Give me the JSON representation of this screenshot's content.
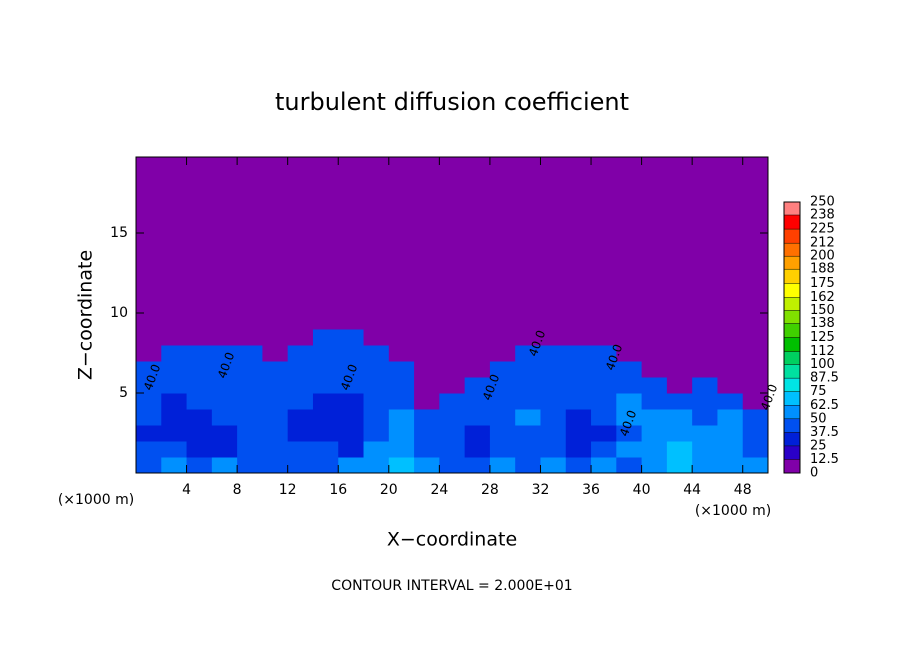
{
  "chart_data": {
    "type": "heatmap",
    "title": "turbulent diffusion coefficient",
    "x_label": "X−coordinate",
    "y_label": "Z−coordinate",
    "x_unit_left": "(×1000 m)",
    "x_unit_right": "(×1000 m)",
    "footer": "CONTOUR INTERVAL = 2.000E+01",
    "xlim": [
      0,
      50
    ],
    "ylim": [
      0,
      19.75
    ],
    "xticks": [
      4,
      8,
      12,
      16,
      20,
      24,
      28,
      32,
      36,
      40,
      44,
      48
    ],
    "yticks": [
      5,
      10,
      15
    ],
    "x_edges": [
      0,
      2,
      4,
      6,
      8,
      10,
      12,
      14,
      16,
      18,
      20,
      22,
      24,
      26,
      28,
      30,
      32,
      34,
      36,
      38,
      40,
      42,
      44,
      46,
      48,
      50
    ],
    "y_edges": [
      0,
      1,
      2,
      3,
      4,
      5,
      6,
      7,
      8,
      9,
      19.75
    ],
    "values": [
      [
        45,
        50,
        40,
        50,
        45,
        45,
        40,
        45,
        50,
        55,
        65,
        50,
        40,
        45,
        50,
        45,
        50,
        40,
        50,
        45,
        60,
        65,
        60,
        55,
        50
      ],
      [
        40,
        40,
        30,
        35,
        40,
        45,
        40,
        40,
        35,
        50,
        60,
        45,
        45,
        35,
        40,
        40,
        45,
        35,
        40,
        55,
        60,
        70,
        55,
        50,
        45
      ],
      [
        35,
        30,
        30,
        35,
        45,
        40,
        35,
        30,
        35,
        45,
        55,
        45,
        40,
        35,
        40,
        45,
        40,
        30,
        35,
        45,
        55,
        60,
        50,
        55,
        45
      ],
      [
        40,
        30,
        30,
        40,
        45,
        40,
        35,
        35,
        30,
        40,
        50,
        40,
        45,
        45,
        40,
        50,
        40,
        35,
        40,
        50,
        50,
        55,
        45,
        50,
        40
      ],
      [
        45,
        35,
        40,
        40,
        45,
        40,
        40,
        35,
        35,
        40,
        45,
        10,
        45,
        40,
        45,
        45,
        40,
        45,
        45,
        50,
        45,
        45,
        40,
        45,
        0
      ],
      [
        45,
        40,
        40,
        45,
        45,
        45,
        40,
        40,
        40,
        45,
        45,
        0,
        0,
        45,
        40,
        45,
        40,
        45,
        45,
        45,
        40,
        10,
        40,
        0,
        0
      ],
      [
        40,
        45,
        45,
        45,
        45,
        40,
        45,
        45,
        45,
        45,
        40,
        0,
        0,
        10,
        45,
        45,
        45,
        45,
        40,
        40,
        10,
        0,
        0,
        0,
        0
      ],
      [
        10,
        40,
        45,
        40,
        40,
        10,
        40,
        45,
        45,
        40,
        10,
        0,
        0,
        0,
        10,
        45,
        40,
        45,
        40,
        10,
        0,
        0,
        0,
        0,
        0
      ],
      [
        0,
        0,
        0,
        0,
        0,
        0,
        10,
        40,
        40,
        0,
        0,
        0,
        0,
        0,
        0,
        0,
        0,
        10,
        0,
        0,
        0,
        0,
        0,
        0,
        0
      ],
      [
        0,
        0,
        0,
        0,
        0,
        0,
        0,
        0,
        0,
        0,
        0,
        0,
        0,
        0,
        0,
        0,
        0,
        0,
        0,
        0,
        0,
        0,
        0,
        0,
        0
      ]
    ],
    "levels": [
      0,
      12.5,
      25,
      37.5,
      50,
      62.5,
      75,
      87.5,
      100,
      112,
      125,
      138,
      150,
      162,
      175,
      188,
      200,
      212,
      225,
      238,
      250
    ],
    "colors": [
      "#8000a8",
      "#2a00c8",
      "#0020d8",
      "#0050f0",
      "#0090ff",
      "#00c0ff",
      "#00e4e4",
      "#00e0a0",
      "#00d060",
      "#00c000",
      "#40d000",
      "#80e000",
      "#c0f000",
      "#ffff00",
      "#ffd000",
      "#ffa000",
      "#ff7000",
      "#ff4000",
      "#ff0000",
      "#ff8080"
    ],
    "contour_labels": [
      "40.0",
      "40.0",
      "40.0",
      "40.0",
      "40.0",
      "40.0",
      "40.0",
      "40.0"
    ]
  }
}
